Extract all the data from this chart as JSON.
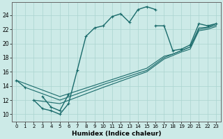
{
  "xlabel": "Humidex (Indice chaleur)",
  "xlim": [
    -0.5,
    23.5
  ],
  "ylim": [
    9.0,
    25.8
  ],
  "yticks": [
    10,
    12,
    14,
    16,
    18,
    20,
    22,
    24
  ],
  "xticks": [
    0,
    1,
    2,
    3,
    4,
    5,
    6,
    7,
    8,
    9,
    10,
    11,
    12,
    13,
    14,
    15,
    16,
    17,
    18,
    19,
    20,
    21,
    22,
    23
  ],
  "background_color": "#cceae7",
  "grid_color": "#aad4d0",
  "line_color": "#1a6b6b",
  "line1_x": [
    0,
    1
  ],
  "line1_y": [
    14.8,
    13.8
  ],
  "line2_x": [
    2,
    3,
    4,
    5,
    6,
    7,
    8,
    9,
    10,
    11,
    12,
    13,
    14,
    15,
    16
  ],
  "line2_y": [
    12.0,
    10.8,
    10.5,
    10.0,
    11.5,
    16.2,
    21.0,
    22.2,
    22.5,
    23.8,
    24.2,
    23.0,
    24.8,
    25.2,
    24.8
  ],
  "line3_x": [
    3,
    4,
    5,
    6
  ],
  "line3_y": [
    12.5,
    11.0,
    10.5,
    12.8
  ],
  "line4_x": [
    16,
    17,
    18,
    19,
    20,
    21,
    22,
    23
  ],
  "line4_y": [
    22.5,
    22.5,
    19.0,
    19.2,
    19.8,
    22.8,
    22.5,
    22.8
  ],
  "lineA_x": [
    0,
    5,
    10,
    15,
    17,
    18,
    19,
    20,
    21,
    22,
    23
  ],
  "lineA_y": [
    14.8,
    12.5,
    14.5,
    16.5,
    18.2,
    18.5,
    19.0,
    19.5,
    22.2,
    22.3,
    22.8
  ],
  "lineB_x": [
    1,
    5,
    10,
    15,
    17,
    18,
    19,
    20,
    21,
    22,
    23
  ],
  "lineB_y": [
    13.8,
    12.0,
    14.2,
    16.2,
    18.0,
    18.5,
    19.0,
    19.5,
    22.0,
    22.2,
    22.6
  ],
  "lineC_x": [
    2,
    5,
    10,
    15,
    17,
    18,
    19,
    20,
    21,
    22,
    23
  ],
  "lineC_y": [
    12.0,
    11.5,
    13.8,
    16.0,
    17.8,
    18.3,
    18.8,
    19.2,
    21.8,
    22.0,
    22.4
  ]
}
